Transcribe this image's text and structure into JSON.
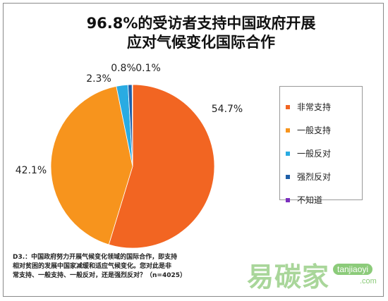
{
  "chart_data": {
    "type": "pie",
    "title_lines": [
      "96.8%的受访者支持中国政府开展",
      "应对气候变化国际合作"
    ],
    "categories": [
      "非常支持",
      "一般支持",
      "一般反对",
      "强烈反对",
      "不知道"
    ],
    "values": [
      54.7,
      42.1,
      2.3,
      0.8,
      0.1
    ],
    "value_labels": [
      "54.7%",
      "42.1%",
      "2.3%",
      "0.8%",
      "0.1%"
    ],
    "colors": [
      "#f26522",
      "#f7941d",
      "#29abe2",
      "#1f5fa8",
      "#7b2fbe"
    ],
    "legend_position": "right"
  },
  "footnote_lines": [
    "D3.：中国政府努力开展气候变化领域的国际合作，即支持",
    "相对贫困的发展中国家减缓和适应气候变化。您对此是非",
    "常支持、一般支持、一般反对，还是强烈反对？（n=4025）"
  ],
  "watermark": {
    "cn": "易碳家",
    "en": "tanjiaoyi",
    "com": ".com"
  }
}
